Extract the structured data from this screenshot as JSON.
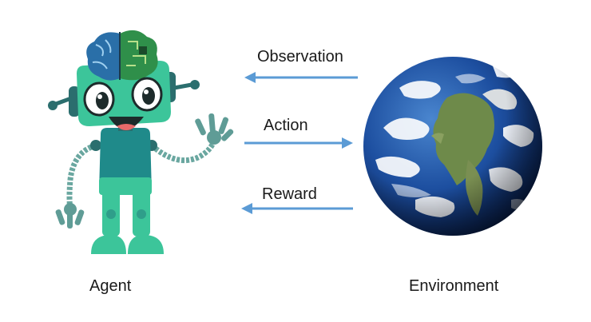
{
  "labels": {
    "observation": "Observation",
    "action": "Action",
    "reward": "Reward",
    "agent": "Agent",
    "environment": "Environment"
  },
  "colors": {
    "arrow": "#5b9bd5",
    "robot_body": "#3cc59a",
    "robot_torso": "#1f8a8a",
    "brain_blue": "#2a6fa8",
    "brain_green": "#2f8f4a",
    "ocean": "#1d4fa0",
    "land": "#6e8a4a"
  },
  "icons": {
    "agent": "robot-icon",
    "environment": "earth-globe-icon"
  }
}
